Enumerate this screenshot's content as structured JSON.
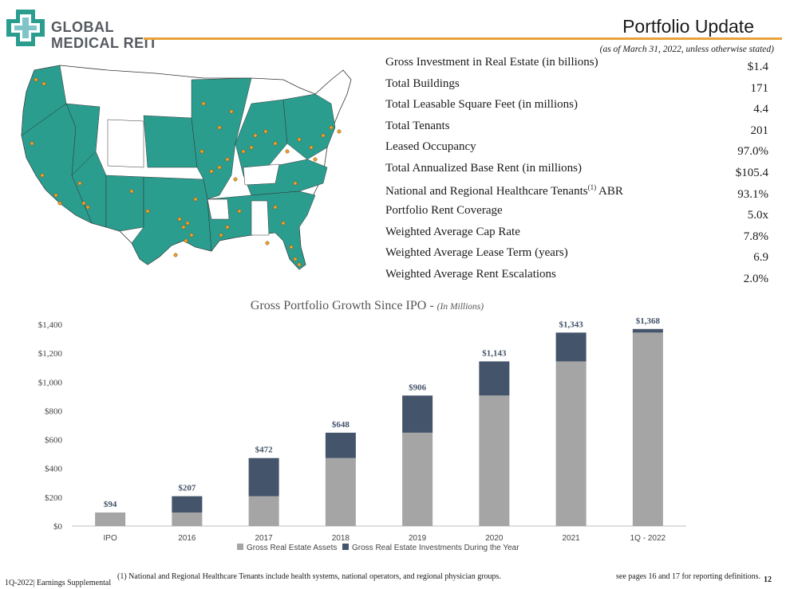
{
  "header": {
    "logo_line1": "GLOBAL",
    "logo_line2": "MEDICAL REIT",
    "title": "Portfolio Update",
    "subtitle": "(as of March 31, 2022, unless otherwise stated)"
  },
  "stats": [
    {
      "label": "Gross Investment in Real Estate (in billions)",
      "value": "$1.4"
    },
    {
      "label": "Total Buildings",
      "value": "171"
    },
    {
      "label": "Total Leasable Square Feet (in millions)",
      "value": "4.4"
    },
    {
      "label": "Total Tenants",
      "value": "201"
    },
    {
      "label": "Leased Occupancy",
      "value": "97.0%"
    },
    {
      "label": "Total Annualized Base Rent (in millions)",
      "value": "$105.4"
    },
    {
      "label_pre": "National and Regional Healthcare Tenants",
      "label_sup": "(1)",
      "label_post": " ABR",
      "value": "93.1%"
    },
    {
      "label": "Portfolio Rent Coverage",
      "value": "5.0x"
    },
    {
      "label": "Weighted Average Cap Rate",
      "value": "7.8%"
    },
    {
      "label": "Weighted Average Lease Term (years)",
      "value": "6.9"
    },
    {
      "label": "Weighted Average Rent Escalations",
      "value": "2.0%"
    }
  ],
  "colors": {
    "accent": "#e9a23b",
    "map_fill": "#2a9d8f",
    "bar_base": "#a5a5a5",
    "bar_top": "#44546a"
  },
  "chart_data": {
    "type": "bar",
    "stacked": true,
    "title": "Gross Portfolio Growth Since IPO - ",
    "title_note": "(In Millions)",
    "categories": [
      "IPO",
      "2016",
      "2017",
      "2018",
      "2019",
      "2020",
      "2021",
      "1Q - 2022"
    ],
    "series": [
      {
        "name": "Gross Real Estate Assets",
        "values": [
          94,
          94,
          207,
          472,
          648,
          906,
          1143,
          1343
        ]
      },
      {
        "name": "Gross Real Estate Investments During the Year",
        "values": [
          0,
          113,
          265,
          176,
          258,
          237,
          200,
          25
        ]
      }
    ],
    "totals": [
      "$94",
      "$207",
      "$472",
      "$648",
      "$906",
      "$1,143",
      "$1,343",
      "$1,368"
    ],
    "yticks": [
      "$0",
      "$200",
      "$400",
      "$600",
      "$800",
      "$1,000",
      "$1,200",
      "$1,400"
    ],
    "ylim": [
      0,
      1400
    ]
  },
  "footer": {
    "left": "1Q-2022| Earnings Supplemental",
    "note": "(1)   National and Regional Healthcare Tenants include health systems, national operators, and regional physician groups.",
    "right": "see pages 16 and 17 for reporting definitions.",
    "page": "12"
  }
}
